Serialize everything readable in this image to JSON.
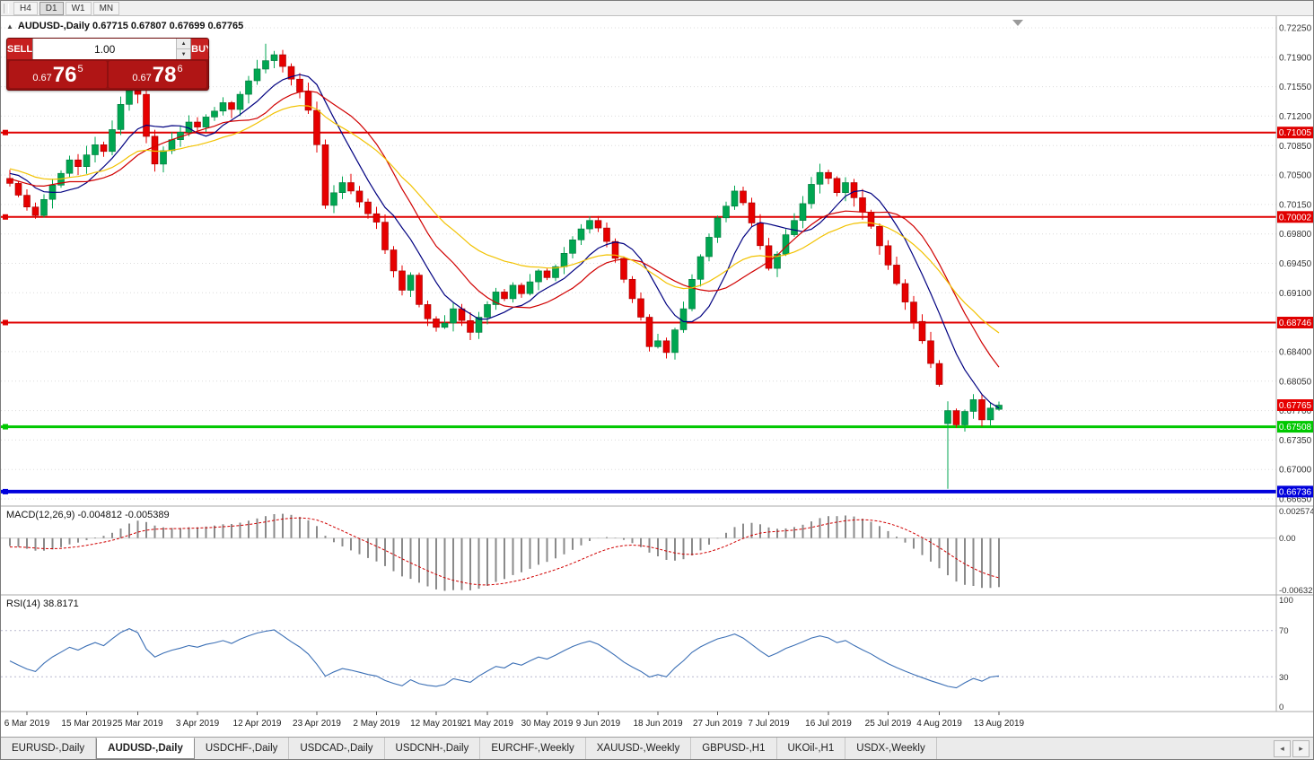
{
  "toolbar": {
    "periods": [
      {
        "label": "H4",
        "active": false
      },
      {
        "label": "D1",
        "active": true
      },
      {
        "label": "W1",
        "active": false
      },
      {
        "label": "MN",
        "active": false
      }
    ]
  },
  "chart": {
    "collapse_icon": "▲",
    "symbol_line": "AUDUSD-,Daily  0.67715 0.67807 0.67699 0.67765",
    "one_click": {
      "sell_label": "SELL",
      "buy_label": "BUY",
      "volume": "1.00",
      "sell_price": {
        "small": "0.67",
        "big": "76",
        "sup": "5"
      },
      "buy_price": {
        "small": "0.67",
        "big": "78",
        "sup": "6"
      }
    }
  },
  "chart_data": {
    "type": "candlestick",
    "symbol": "AUDUSD",
    "timeframe": "Daily",
    "ohlc_current": {
      "open": 0.67715,
      "high": 0.67807,
      "low": 0.67699,
      "close": 0.67765
    },
    "colors": {
      "bull": "#00a651",
      "bull_border": "#00753a",
      "bear": "#e60000",
      "bear_border": "#a00000",
      "grid": "#dcdcdc",
      "axis": "#a8a8a8",
      "macd_hist": "#8a8a8a",
      "macd_signal": "#d00000",
      "rsi": "#3b6fb5",
      "current_tag": "#e60000"
    },
    "price_axis": {
      "top": 0.7225,
      "step": 0.0035,
      "labels": [
        "0.72250",
        "0.71900",
        "0.71550",
        "0.71200",
        "0.70850",
        "0.70500",
        "0.70150",
        "0.69800",
        "0.69450",
        "0.69100",
        "0.68750",
        "0.68400",
        "0.68050",
        "0.67700",
        "0.67350",
        "0.67000",
        "0.66650"
      ]
    },
    "hlines": [
      {
        "value": 0.71005,
        "label": "0.71005",
        "color": "#e00000",
        "width": 2
      },
      {
        "value": 0.70002,
        "label": "0.70002",
        "color": "#e00000",
        "width": 2
      },
      {
        "value": 0.68746,
        "label": "0.68746",
        "color": "#e00000",
        "width": 2
      },
      {
        "value": 0.67508,
        "label": "0.67508",
        "color": "#00c800",
        "width": 3
      },
      {
        "value": 0.66736,
        "label": "0.66736",
        "color": "#0000dc",
        "width": 4
      }
    ],
    "current_price": 0.67765,
    "current_price_label": "0.67765",
    "pre_closes": [
      0.7095,
      0.7102,
      0.7088,
      0.7075,
      0.706,
      0.7048,
      0.7062,
      0.708,
      0.7095,
      0.7108,
      0.7118,
      0.7125,
      0.7132,
      0.712,
      0.7108,
      0.7115,
      0.7128,
      0.7135,
      0.7126,
      0.7112,
      0.7098,
      0.7085,
      0.7092,
      0.7104,
      0.7112,
      0.7098,
      0.7082,
      0.7068,
      0.7055,
      0.7042,
      0.703,
      0.7045,
      0.706,
      0.7075,
      0.7088,
      0.7095,
      0.7082,
      0.7068,
      0.7052,
      0.7038,
      0.7025,
      0.7012,
      0.7028,
      0.7045,
      0.706,
      0.7072,
      0.7058,
      0.7044,
      0.705,
      0.7046
    ],
    "closes": [
      0.704,
      0.7026,
      0.7012,
      0.7002,
      0.7021,
      0.7038,
      0.7052,
      0.7068,
      0.706,
      0.7074,
      0.7086,
      0.7078,
      0.7104,
      0.7134,
      0.7156,
      0.7146,
      0.7096,
      0.7063,
      0.7079,
      0.7092,
      0.7101,
      0.7113,
      0.7107,
      0.7119,
      0.7126,
      0.7136,
      0.7128,
      0.7146,
      0.7162,
      0.7176,
      0.7186,
      0.7193,
      0.7179,
      0.7164,
      0.7149,
      0.7127,
      0.7086,
      0.7014,
      0.7029,
      0.7041,
      0.7031,
      0.7018,
      0.7004,
      0.6994,
      0.6961,
      0.6936,
      0.6913,
      0.6931,
      0.6896,
      0.6879,
      0.6869,
      0.6874,
      0.6891,
      0.6877,
      0.6863,
      0.6881,
      0.6896,
      0.6911,
      0.6903,
      0.6919,
      0.6909,
      0.6923,
      0.6936,
      0.6928,
      0.6941,
      0.6957,
      0.6973,
      0.6986,
      0.6996,
      0.6987,
      0.6971,
      0.6951,
      0.6926,
      0.6903,
      0.6881,
      0.6846,
      0.6853,
      0.6839,
      0.6866,
      0.6891,
      0.6926,
      0.6953,
      0.6976,
      0.6999,
      0.7013,
      0.7031,
      0.7017,
      0.6993,
      0.6966,
      0.6939,
      0.6956,
      0.6979,
      0.6996,
      0.7016,
      0.7039,
      0.7053,
      0.7046,
      0.7029,
      0.7041,
      0.7023,
      0.7006,
      0.6989,
      0.6966,
      0.6943,
      0.6921,
      0.6899,
      0.6876,
      0.6853,
      0.6826,
      0.6801,
      0.677,
      0.6753,
      0.6769,
      0.6783,
      0.6759,
      0.6773,
      0.67765
    ],
    "wick_overrides": {
      "30": {
        "high": 0.7206
      },
      "110": {
        "open": 0.67545,
        "high": 0.6781,
        "low": 0.6677
      },
      "116": {
        "open": 0.67715,
        "high": 0.67807,
        "low": 0.67699,
        "close": 0.67765
      }
    },
    "ma": [
      {
        "period": 8,
        "type": "sma",
        "color": "#000080"
      },
      {
        "period": 14,
        "type": "sma",
        "color": "#d00000"
      },
      {
        "period": 24,
        "type": "ema",
        "color": "#f2c200"
      }
    ],
    "date_ticks": [
      {
        "label": "6 Mar 2019",
        "index": 2
      },
      {
        "label": "15 Mar 2019",
        "index": 9
      },
      {
        "label": "25 Mar 2019",
        "index": 15
      },
      {
        "label": "3 Apr 2019",
        "index": 22
      },
      {
        "label": "12 Apr 2019",
        "index": 29
      },
      {
        "label": "23 Apr 2019",
        "index": 36
      },
      {
        "label": "2 May 2019",
        "index": 43
      },
      {
        "label": "12 May 2019",
        "index": 50
      },
      {
        "label": "21 May 2019",
        "index": 56
      },
      {
        "label": "30 May 2019",
        "index": 63
      },
      {
        "label": "9 Jun 2019",
        "index": 69
      },
      {
        "label": "18 Jun 2019",
        "index": 76
      },
      {
        "label": "27 Jun 2019",
        "index": 83
      },
      {
        "label": "7 Jul 2019",
        "index": 89
      },
      {
        "label": "16 Jul 2019",
        "index": 96
      },
      {
        "label": "25 Jul 2019",
        "index": 103
      },
      {
        "label": "4 Aug 2019",
        "index": 109
      },
      {
        "label": "13 Aug 2019",
        "index": 116
      }
    ],
    "indicators": {
      "macd": {
        "label": "MACD(12,26,9) -0.004812 -0.005389",
        "fast": 12,
        "slow": 26,
        "signal": 9,
        "scale_max": "0.002574",
        "scale_zero": "0.00",
        "scale_min": "-0.006326"
      },
      "rsi": {
        "label": "RSI(14) 38.8171",
        "period": 14,
        "upper": 70,
        "lower": 30,
        "levels": [
          "100",
          "70",
          "30",
          "0"
        ]
      }
    }
  },
  "tabs": {
    "items": [
      {
        "label": "EURUSD-,Daily",
        "active": false
      },
      {
        "label": "AUDUSD-,Daily",
        "active": true
      },
      {
        "label": "USDCHF-,Daily",
        "active": false
      },
      {
        "label": "USDCAD-,Daily",
        "active": false
      },
      {
        "label": "USDCNH-,Daily",
        "active": false
      },
      {
        "label": "EURCHF-,Weekly",
        "active": false
      },
      {
        "label": "XAUUSD-,Weekly",
        "active": false
      },
      {
        "label": "GBPUSD-,H1",
        "active": false
      },
      {
        "label": "UKOil-,H1",
        "active": false
      },
      {
        "label": "USDX-,Weekly",
        "active": false
      }
    ]
  },
  "tab_scroll": {
    "left": "◂",
    "right": "▸"
  }
}
